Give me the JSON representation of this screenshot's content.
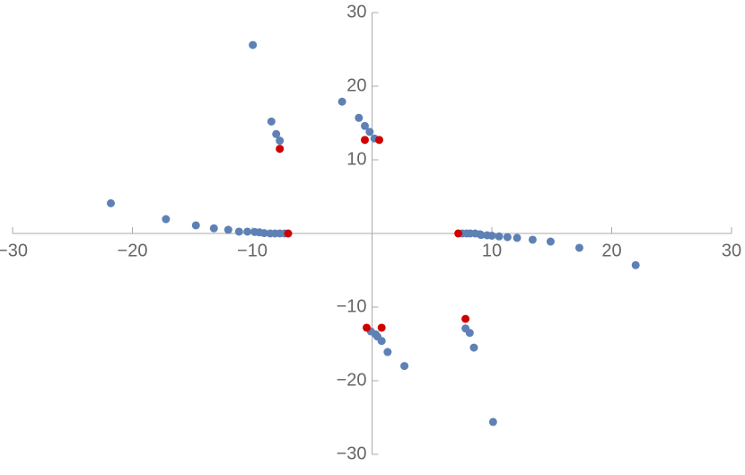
{
  "chart_data": {
    "type": "scatter",
    "xlim": [
      -30,
      30
    ],
    "ylim": [
      -30,
      30
    ],
    "xticks": [
      {
        "value": -30,
        "label": "−30"
      },
      {
        "value": -20,
        "label": "−20"
      },
      {
        "value": -10,
        "label": "−10"
      },
      10,
      20,
      30
    ],
    "yticks": [
      {
        "value": -30,
        "label": "−30"
      },
      {
        "value": -20,
        "label": "−20"
      },
      {
        "value": -10,
        "label": "−10"
      },
      10,
      20,
      30
    ],
    "series": [
      {
        "color": "#5e81b5",
        "x": [
          -21.8,
          -17.2,
          -14.7,
          -13.2,
          -12.0,
          -11.1,
          -10.4,
          -9.8,
          -9.4,
          -9.0,
          -8.5,
          -8.1,
          -7.7,
          -7.3,
          -9.95,
          -8.4,
          -8.0,
          -7.7,
          -2.5,
          -1.1,
          -0.6,
          -0.2,
          0.2,
          7.55,
          7.9,
          8.2,
          8.6,
          9.0,
          9.1,
          9.6,
          10.0,
          10.6,
          11.3,
          12.1,
          13.4,
          14.9,
          17.3,
          22.0,
          -0.1,
          0.3,
          0.45,
          0.8,
          1.3,
          2.7,
          7.8,
          8.15,
          8.5,
          10.1
        ],
        "values": [
          4.1,
          1.95,
          1.1,
          0.7,
          0.5,
          0.25,
          0.25,
          0.2,
          0.15,
          0.05,
          0,
          0,
          0,
          0,
          25.6,
          15.2,
          13.5,
          12.6,
          17.9,
          15.7,
          14.6,
          13.8,
          12.9,
          0,
          0,
          0,
          0,
          -0.1,
          -0.2,
          -0.25,
          -0.3,
          -0.4,
          -0.5,
          -0.6,
          -0.85,
          -1.1,
          -1.95,
          -4.3,
          -13.3,
          -13.7,
          -14.0,
          -14.6,
          -16.1,
          -18.0,
          -12.9,
          -13.5,
          -15.5,
          -25.6
        ]
      },
      {
        "color": "#d00000",
        "x": [
          -7.0,
          -7.7,
          -0.6,
          0.6,
          7.2,
          -0.45,
          0.8,
          7.8
        ],
        "values": [
          0,
          11.5,
          12.7,
          12.7,
          0,
          -12.8,
          -12.8,
          -11.6
        ]
      }
    ]
  }
}
